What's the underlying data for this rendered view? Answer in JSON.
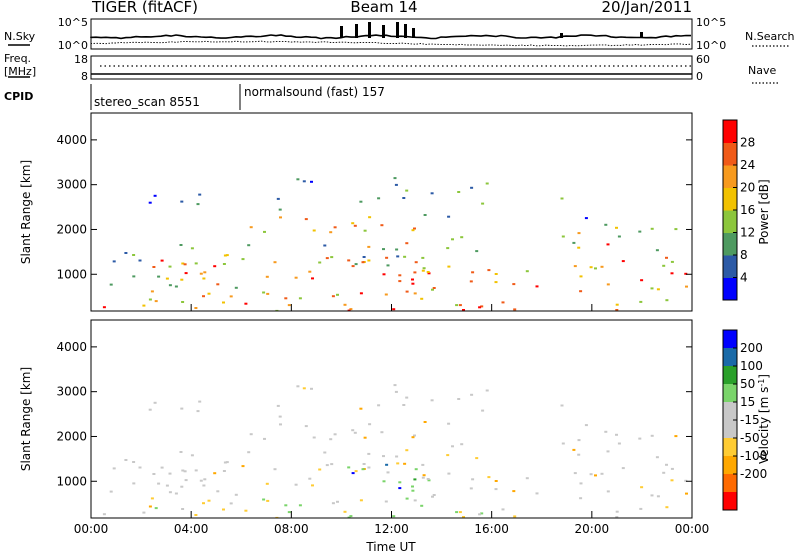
{
  "header": {
    "title": "TIGER (fitACF)",
    "beam": "Beam 14",
    "date": "20/Jan/2011"
  },
  "top_panels": {
    "nsky_label": "N.Sky",
    "nsky_ticks": [
      "10^5",
      "10^0"
    ],
    "nsearch_label": "N.Search",
    "nsearch_ticks": [
      "10^5",
      "10^0"
    ],
    "freq_label_1": "Freq.",
    "freq_label_2": "[MHz]",
    "freq_ticks": [
      "18",
      "8"
    ],
    "nave_label": "Nave",
    "nave_ticks": [
      "60",
      "0"
    ],
    "cpid_label": "CPID",
    "cpid_1": "stereo_scan 8551",
    "cpid_2": "normalsound (fast) 157"
  },
  "colors": {
    "power": [
      "#0000ff",
      "#2c5aa6",
      "#4e9a60",
      "#8cc63c",
      "#f2c200",
      "#f79a1e",
      "#f05a18",
      "#ff0000"
    ],
    "velocity": [
      "#ff0000",
      "#ff6a00",
      "#ffa800",
      "#ffcc33",
      "#c8c8c8",
      "#c8c8c8",
      "#7ad46a",
      "#2aa02a",
      "#1a6aa8",
      "#0000ff"
    ]
  },
  "chart_data": [
    {
      "type": "heatmap",
      "name": "power-panel",
      "ylabel": "Slant Range [km]",
      "xlabel": "",
      "x_ticks": [
        "00:00",
        "04:00",
        "08:00",
        "12:00",
        "16:00",
        "20:00",
        "00:00"
      ],
      "y_ticks": [
        "1000",
        "2000",
        "3000",
        "4000"
      ],
      "xlim_hours": [
        0,
        24
      ],
      "ylim_km": [
        180,
        4600
      ],
      "colorbar_label": "Power [dB]",
      "colorbar_ticks": [
        "4",
        "8",
        "12",
        "16",
        "20",
        "24",
        "28"
      ]
    },
    {
      "type": "heatmap",
      "name": "velocity-panel",
      "ylabel": "Slant Range [km]",
      "xlabel": "Time UT",
      "x_ticks": [
        "00:00",
        "04:00",
        "08:00",
        "12:00",
        "16:00",
        "20:00",
        "00:00"
      ],
      "y_ticks": [
        "1000",
        "2000",
        "3000",
        "4000"
      ],
      "xlim_hours": [
        0,
        24
      ],
      "ylim_km": [
        180,
        4600
      ],
      "colorbar_label": "Velocity [m s",
      "colorbar_label_sup": "-1",
      "colorbar_label_end": "]",
      "colorbar_ticks": [
        "200",
        "100",
        "50",
        "15",
        "-15",
        "-50",
        "-100",
        "-200"
      ]
    }
  ]
}
